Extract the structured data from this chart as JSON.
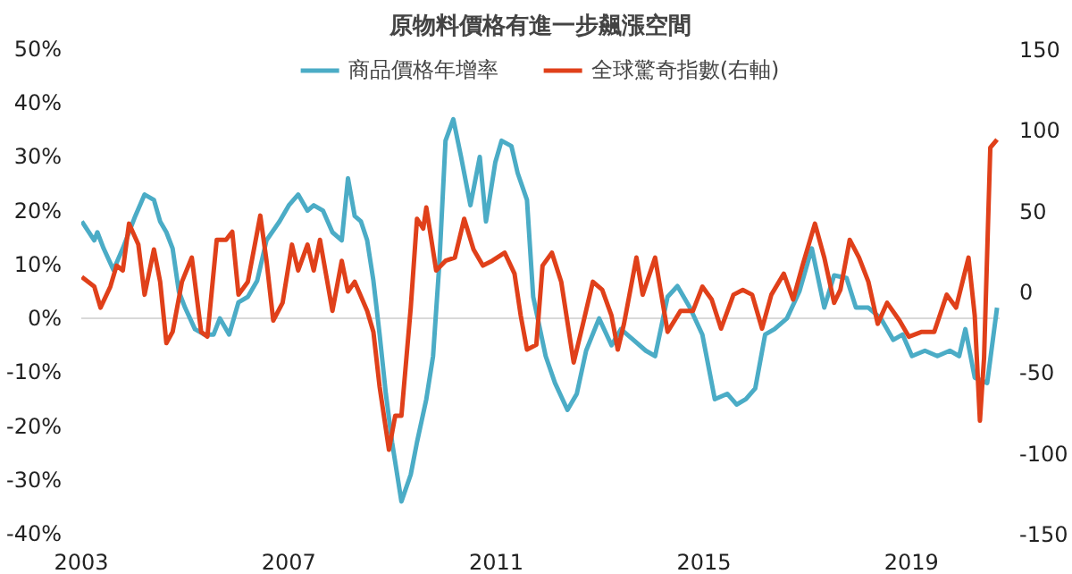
{
  "chart_data": {
    "type": "line",
    "title": "原物料價格有進一步飆漲空間",
    "xlim": [
      2003,
      2020.7
    ],
    "xticks": [
      2003,
      2007,
      2011,
      2015,
      2019
    ],
    "ylim": [
      -40,
      50
    ],
    "yticks": [
      {
        "value": -40,
        "label": "-40%"
      },
      {
        "value": -30,
        "label": "-30%"
      },
      {
        "value": -20,
        "label": "-20%"
      },
      {
        "value": -10,
        "label": "-10%"
      },
      {
        "value": 0,
        "label": "0%"
      },
      {
        "value": 10,
        "label": "10%"
      },
      {
        "value": 20,
        "label": "20%"
      },
      {
        "value": 30,
        "label": "30%"
      },
      {
        "value": 40,
        "label": "40%"
      },
      {
        "value": 50,
        "label": "50%"
      }
    ],
    "y2lim": [
      -150,
      150
    ],
    "y2ticks": [
      -150,
      -100,
      -50,
      0,
      50,
      100,
      150
    ],
    "ref_lines": [
      {
        "axis": "y",
        "value": 0,
        "color": "#d9d9d9"
      }
    ],
    "grid": false,
    "legend": "top",
    "marker": "none",
    "line_style": "solid",
    "series": [
      {
        "name": "商品價格年增率",
        "color": "#4bacc6",
        "x": [
          2003.01,
          2003.25,
          2003.31,
          2003.43,
          2003.62,
          2003.8,
          2004.04,
          2004.22,
          2004.4,
          2004.52,
          2004.64,
          2004.76,
          2004.88,
          2005.0,
          2005.19,
          2005.37,
          2005.55,
          2005.67,
          2005.85,
          2006.03,
          2006.21,
          2006.39,
          2006.57,
          2006.82,
          2007.0,
          2007.18,
          2007.36,
          2007.48,
          2007.66,
          2007.84,
          2008.02,
          2008.14,
          2008.27,
          2008.39,
          2008.51,
          2008.63,
          2008.75,
          2008.87,
          2008.99,
          2009.17,
          2009.35,
          2009.47,
          2009.65,
          2009.78,
          2009.9,
          2010.02,
          2010.17,
          2010.32,
          2010.5,
          2010.68,
          2010.8,
          2010.98,
          2011.1,
          2011.29,
          2011.41,
          2011.59,
          2011.71,
          2011.95,
          2012.13,
          2012.37,
          2012.55,
          2012.73,
          2012.98,
          2013.22,
          2013.4,
          2013.64,
          2013.88,
          2014.06,
          2014.3,
          2014.49,
          2014.73,
          2014.97,
          2015.21,
          2015.45,
          2015.63,
          2015.81,
          2015.99,
          2016.18,
          2016.36,
          2016.6,
          2016.84,
          2017.08,
          2017.32,
          2017.51,
          2017.75,
          2017.93,
          2018.17,
          2018.41,
          2018.65,
          2018.83,
          2019.01,
          2019.26,
          2019.5,
          2019.74,
          2019.92,
          2020.04,
          2020.22,
          2020.46,
          2020.65
        ],
        "values": [
          18,
          14.5,
          16,
          13,
          9,
          13,
          19,
          23,
          22,
          18,
          16,
          13,
          5,
          2,
          -2,
          -3,
          -3,
          0,
          -3,
          3,
          4,
          7,
          14.5,
          18,
          21,
          23,
          20,
          21,
          20,
          16,
          14.5,
          26,
          19,
          18,
          14.5,
          7,
          -3,
          -14,
          -23,
          -34,
          -29,
          -23,
          -15,
          -7,
          10,
          33,
          37,
          30,
          21,
          30,
          18,
          29,
          33,
          32,
          27,
          22,
          4,
          -7,
          -12,
          -17,
          -14,
          -6,
          0,
          -5,
          -2,
          -4,
          -6,
          -7,
          4,
          6,
          2,
          -3,
          -15,
          -14,
          -16,
          -15,
          -13,
          -3,
          -2,
          0,
          5,
          13,
          2,
          8,
          7.5,
          2,
          2,
          0,
          -4,
          -3,
          -7,
          -6,
          -7,
          -6,
          -7,
          -2,
          -11,
          -12,
          2
        ]
      },
      {
        "name": "全球驚奇指數(右軸)",
        "color": "#e0401a",
        "axis": "y2",
        "x": [
          2003.01,
          2003.25,
          2003.37,
          2003.56,
          2003.68,
          2003.8,
          2003.92,
          2004.1,
          2004.22,
          2004.4,
          2004.52,
          2004.64,
          2004.76,
          2004.94,
          2005.13,
          2005.31,
          2005.43,
          2005.61,
          2005.79,
          2005.91,
          2006.03,
          2006.21,
          2006.45,
          2006.57,
          2006.7,
          2006.88,
          2007.06,
          2007.18,
          2007.36,
          2007.48,
          2007.6,
          2007.84,
          2008.02,
          2008.14,
          2008.27,
          2008.51,
          2008.63,
          2008.75,
          2008.93,
          2009.05,
          2009.17,
          2009.35,
          2009.47,
          2009.59,
          2009.65,
          2009.84,
          2010.02,
          2010.2,
          2010.38,
          2010.56,
          2010.74,
          2010.92,
          2011.16,
          2011.35,
          2011.47,
          2011.59,
          2011.77,
          2011.89,
          2012.07,
          2012.25,
          2012.49,
          2012.67,
          2012.86,
          2013.04,
          2013.22,
          2013.34,
          2013.46,
          2013.7,
          2013.82,
          2014.06,
          2014.3,
          2014.55,
          2014.79,
          2014.97,
          2015.15,
          2015.33,
          2015.57,
          2015.75,
          2015.93,
          2016.12,
          2016.3,
          2016.54,
          2016.72,
          2016.9,
          2017.14,
          2017.32,
          2017.51,
          2017.63,
          2017.81,
          2017.99,
          2018.17,
          2018.35,
          2018.53,
          2018.77,
          2018.95,
          2019.2,
          2019.44,
          2019.68,
          2019.86,
          2020.1,
          2020.22,
          2020.32,
          2020.4,
          2020.52,
          2020.65
        ],
        "values": [
          9,
          3,
          -10,
          3,
          16,
          13,
          42,
          29,
          -2,
          26,
          6,
          -32,
          -25,
          6,
          21,
          -25,
          -28,
          32,
          32,
          37,
          -2,
          6,
          47,
          19,
          -18,
          -7,
          29,
          13,
          29,
          13,
          32,
          -12,
          19,
          0,
          6,
          -12,
          -25,
          -59,
          -98,
          -77,
          -77,
          -10,
          45,
          39,
          52,
          13,
          19,
          21,
          45,
          26,
          16,
          19,
          24,
          11,
          -15,
          -36,
          -33,
          16,
          24,
          6,
          -44,
          -20,
          6,
          1,
          -15,
          -36,
          -20,
          21,
          -2,
          21,
          -25,
          -12,
          -12,
          3,
          -5,
          -23,
          -2,
          1,
          -2,
          -23,
          -2,
          11,
          -5,
          16,
          42,
          21,
          -7,
          1,
          32,
          21,
          6,
          -20,
          -7,
          -18,
          -28,
          -25,
          -25,
          -2,
          -10,
          21,
          -15,
          -80,
          -41,
          89,
          94
        ]
      }
    ]
  }
}
